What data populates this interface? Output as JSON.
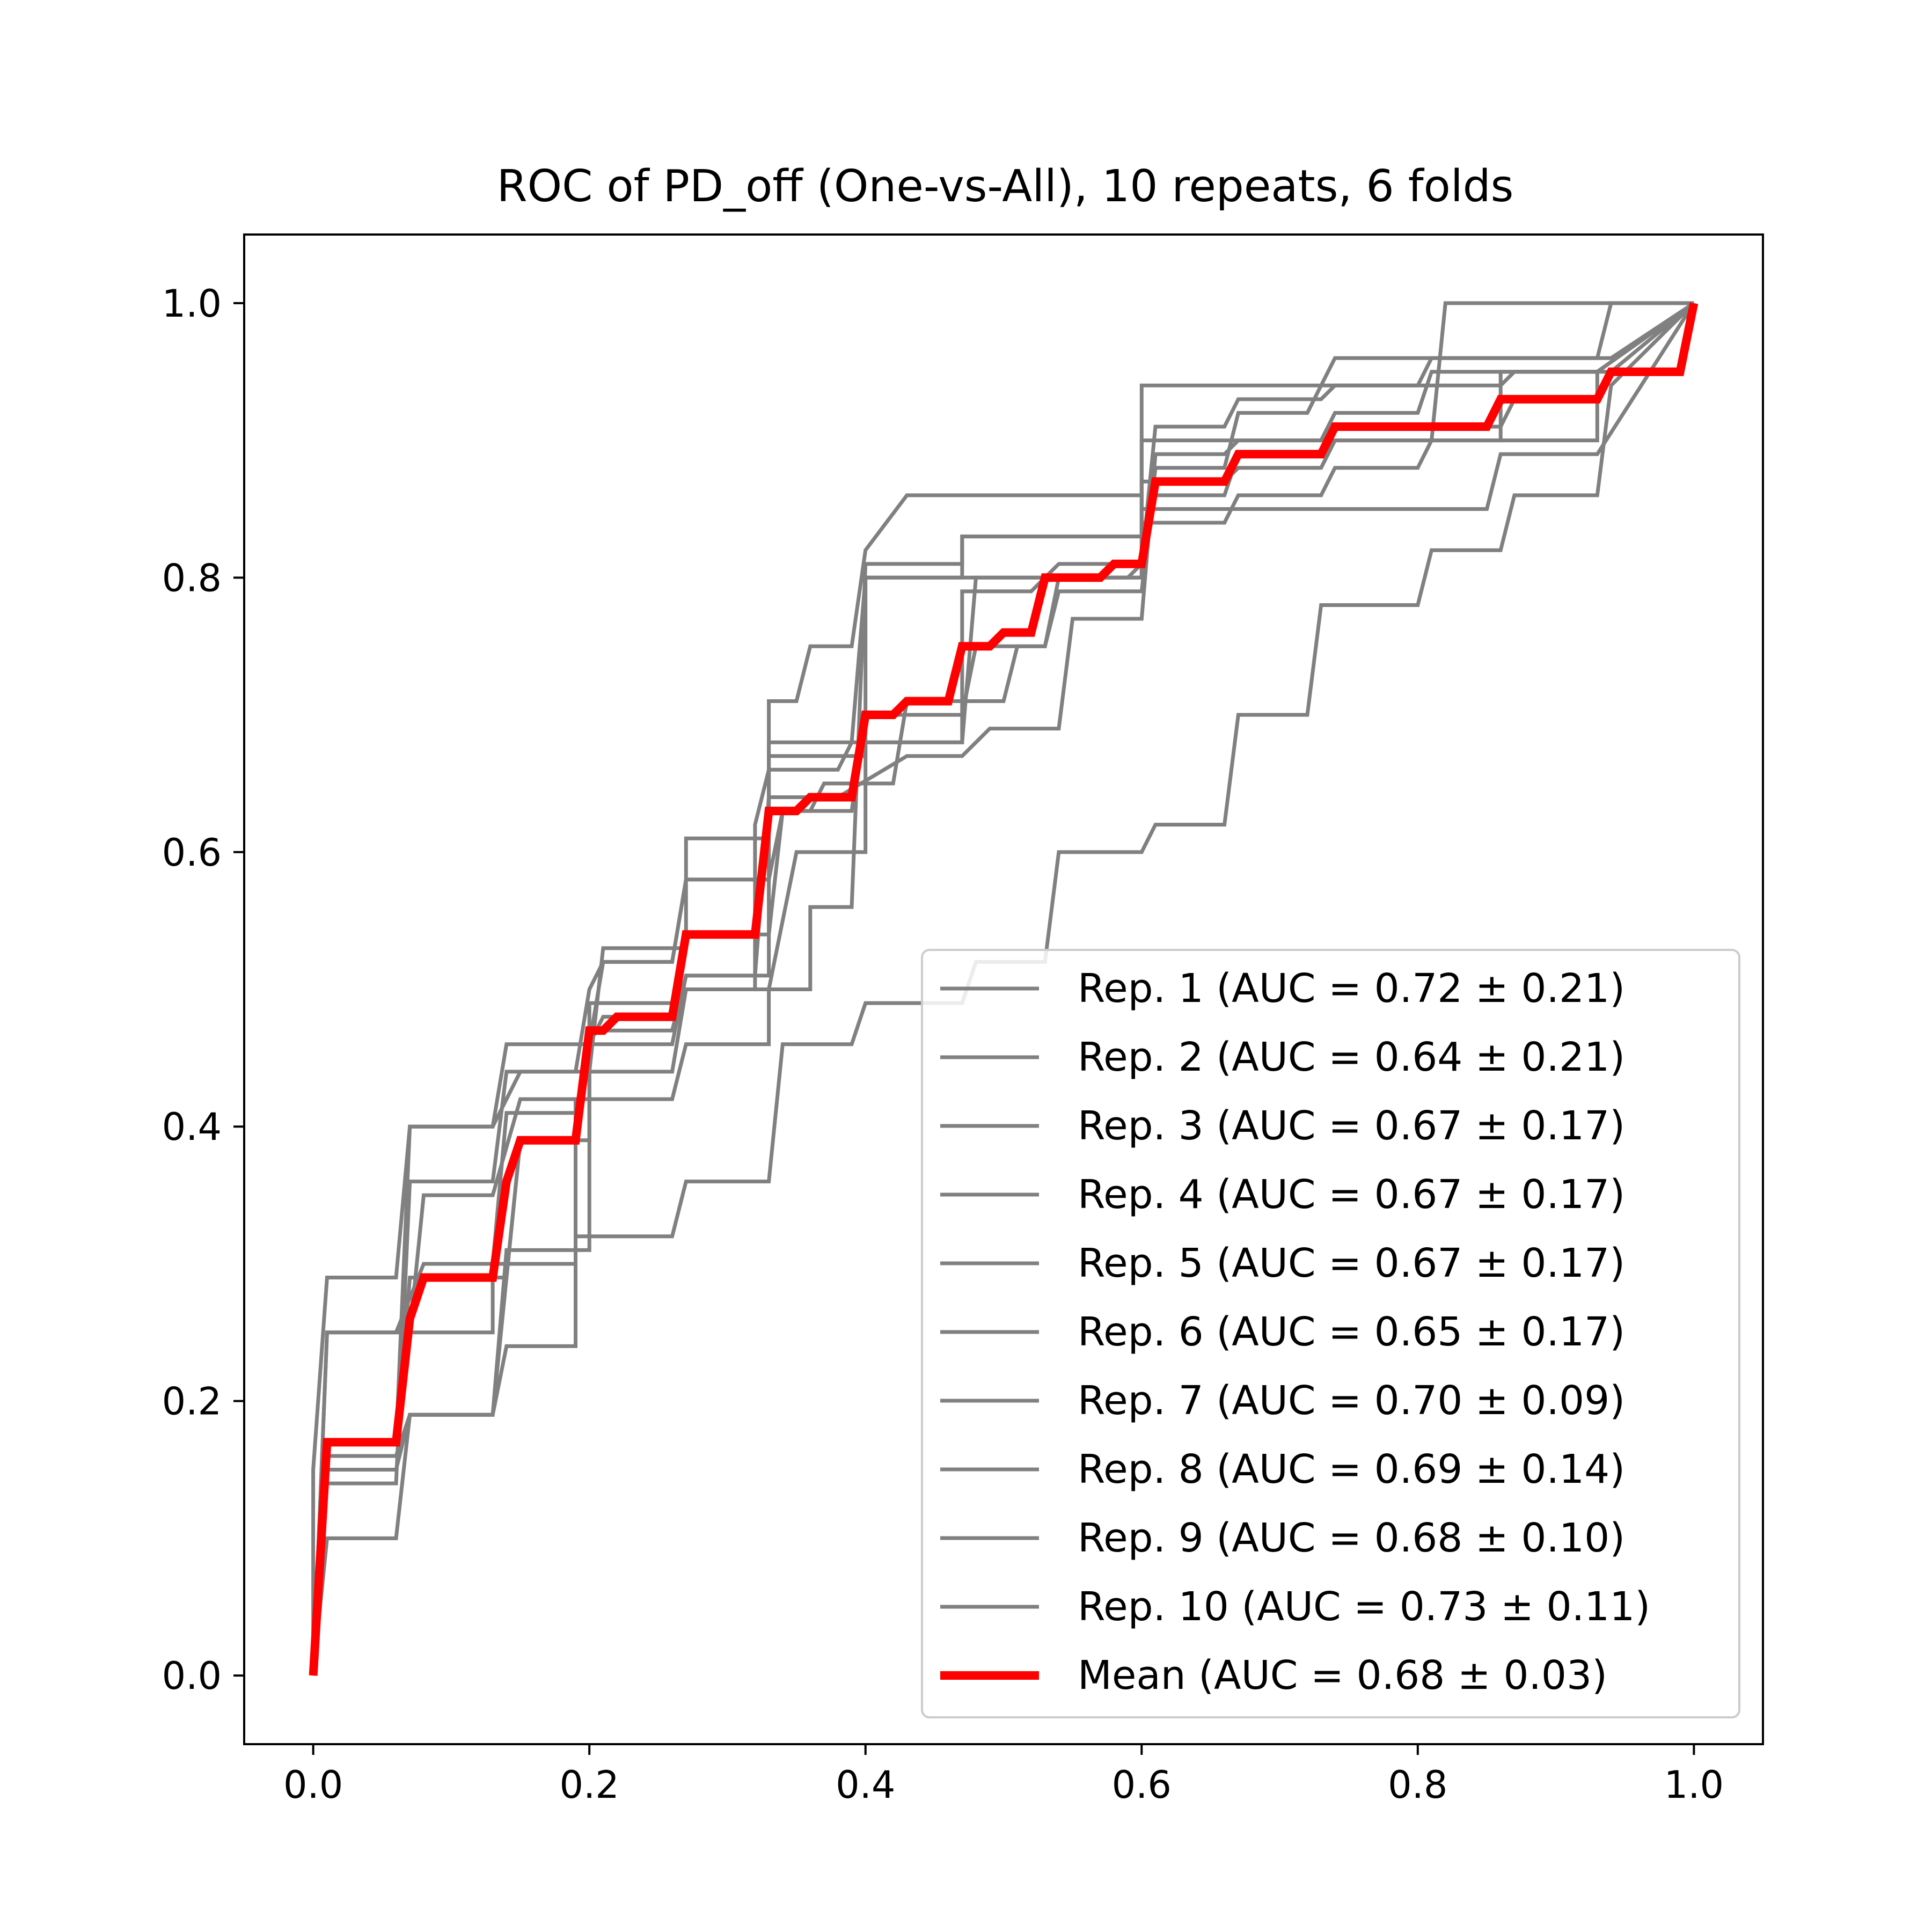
{
  "chart_data": {
    "type": "line",
    "title": "ROC of PD_off (One-vs-All), 10 repeats, 6 folds",
    "xlabel": "",
    "ylabel": "",
    "xlim": [
      -0.05,
      1.05
    ],
    "ylim": [
      -0.05,
      1.05
    ],
    "xticks": [
      "0.0",
      "0.2",
      "0.4",
      "0.6",
      "0.8",
      "1.0"
    ],
    "yticks": [
      "0.0",
      "0.2",
      "0.4",
      "0.6",
      "0.8",
      "1.0"
    ],
    "grid": false,
    "legend_position": "lower-right",
    "series": [
      {
        "name": "Rep. 1 (AUC = 0.72 ± 0.21)",
        "color": "#808080",
        "x": [
          0,
          0,
          0.01,
          0.06,
          0.07,
          0.07,
          0.13,
          0.15,
          0.15,
          0.2,
          0.21,
          0.21,
          0.27,
          0.27,
          0.33,
          0.33,
          0.35,
          0.36,
          0.39,
          0.4,
          0.4,
          0.43,
          0.6,
          0.6,
          0.81,
          0.82,
          0.85,
          0.86,
          1.0
        ],
        "y": [
          0,
          0.15,
          0.29,
          0.29,
          0.4,
          0.4,
          0.4,
          0.44,
          0.44,
          0.44,
          0.53,
          0.53,
          0.53,
          0.61,
          0.61,
          0.71,
          0.71,
          0.75,
          0.75,
          0.82,
          0.82,
          0.86,
          0.86,
          0.9,
          0.9,
          1.0,
          1.0,
          1.0,
          1.0
        ]
      },
      {
        "name": "Rep. 2 (AUC = 0.64 ± 0.21)",
        "color": "#808080",
        "x": [
          0,
          0.01,
          0.06,
          0.07,
          0.13,
          0.14,
          0.19,
          0.19,
          0.26,
          0.27,
          0.33,
          0.33,
          0.36,
          0.36,
          0.39,
          0.4,
          0.47,
          0.47,
          0.6,
          0.6,
          0.66,
          0.66,
          0.85,
          0.86,
          0.93,
          0.93,
          1.0
        ],
        "y": [
          0,
          0.1,
          0.1,
          0.19,
          0.19,
          0.24,
          0.24,
          0.42,
          0.42,
          0.46,
          0.46,
          0.5,
          0.5,
          0.56,
          0.56,
          0.81,
          0.81,
          0.83,
          0.83,
          0.85,
          0.85,
          0.85,
          0.85,
          0.89,
          0.89,
          0.89,
          1.0
        ]
      },
      {
        "name": "Rep. 3 (AUC = 0.67 ± 0.17)",
        "color": "#808080",
        "x": [
          0,
          0.01,
          0.07,
          0.08,
          0.13,
          0.15,
          0.2,
          0.2,
          0.26,
          0.27,
          0.32,
          0.32,
          0.33,
          0.38,
          0.39,
          0.43,
          0.47,
          0.48,
          0.53,
          0.54,
          0.6,
          0.61,
          0.66,
          0.67,
          0.73,
          0.74,
          0.8,
          0.81,
          0.93,
          0.94,
          1.0
        ],
        "y": [
          0,
          0.25,
          0.25,
          0.35,
          0.35,
          0.42,
          0.42,
          0.49,
          0.49,
          0.5,
          0.5,
          0.62,
          0.66,
          0.66,
          0.68,
          0.68,
          0.68,
          0.8,
          0.8,
          0.81,
          0.81,
          0.91,
          0.91,
          0.93,
          0.93,
          0.94,
          0.94,
          0.96,
          0.96,
          0.96,
          1.0
        ]
      },
      {
        "name": "Rep. 4 (AUC = 0.67 ± 0.17)",
        "color": "#808080",
        "x": [
          0,
          0.01,
          0.06,
          0.07,
          0.13,
          0.14,
          0.19,
          0.2,
          0.21,
          0.26,
          0.27,
          0.33,
          0.34,
          0.36,
          0.37,
          0.42,
          0.43,
          0.5,
          0.51,
          0.53,
          0.54,
          0.6,
          0.61,
          0.66,
          0.67,
          0.72,
          0.73,
          0.86,
          0.87,
          0.99,
          1.0
        ],
        "y": [
          0,
          0.14,
          0.14,
          0.36,
          0.36,
          0.44,
          0.44,
          0.5,
          0.52,
          0.52,
          0.58,
          0.58,
          0.63,
          0.63,
          0.65,
          0.65,
          0.71,
          0.71,
          0.75,
          0.75,
          0.79,
          0.79,
          0.88,
          0.88,
          0.92,
          0.92,
          0.94,
          0.94,
          0.95,
          0.95,
          1.0
        ]
      },
      {
        "name": "Rep. 5 (AUC = 0.67 ± 0.17)",
        "color": "#808080",
        "x": [
          0,
          0.01,
          0.06,
          0.07,
          0.13,
          0.14,
          0.2,
          0.2,
          0.26,
          0.27,
          0.33,
          0.33,
          0.4,
          0.4,
          0.47,
          0.47,
          0.52,
          0.53,
          0.6,
          0.6,
          0.66,
          0.67,
          0.73,
          0.74,
          0.8,
          0.81,
          0.93,
          0.93,
          1.0
        ],
        "y": [
          0,
          0.16,
          0.16,
          0.19,
          0.19,
          0.31,
          0.31,
          0.47,
          0.47,
          0.51,
          0.51,
          0.67,
          0.67,
          0.68,
          0.68,
          0.79,
          0.79,
          0.8,
          0.8,
          0.84,
          0.84,
          0.86,
          0.86,
          0.88,
          0.88,
          0.9,
          0.9,
          0.95,
          1.0
        ]
      },
      {
        "name": "Rep. 6 (AUC = 0.65 ± 0.17)",
        "color": "#808080",
        "x": [
          0,
          0.01,
          0.06,
          0.07,
          0.13,
          0.13,
          0.19,
          0.19,
          0.26,
          0.27,
          0.33,
          0.34,
          0.39,
          0.4,
          0.47,
          0.48,
          0.53,
          0.54,
          0.6,
          0.61,
          0.66,
          0.67,
          0.72,
          0.73,
          0.8,
          0.81,
          0.86,
          0.87,
          0.93,
          0.94,
          1.0
        ],
        "y": [
          0,
          0.17,
          0.17,
          0.25,
          0.25,
          0.3,
          0.3,
          0.32,
          0.32,
          0.36,
          0.36,
          0.46,
          0.46,
          0.49,
          0.49,
          0.52,
          0.52,
          0.6,
          0.6,
          0.62,
          0.62,
          0.7,
          0.7,
          0.78,
          0.78,
          0.82,
          0.82,
          0.86,
          0.86,
          0.94,
          1.0
        ]
      },
      {
        "name": "Rep. 7 (AUC = 0.70 ± 0.09)",
        "color": "#808080",
        "x": [
          0,
          0.01,
          0.06,
          0.07,
          0.14,
          0.15,
          0.19,
          0.2,
          0.21,
          0.26,
          0.27,
          0.33,
          0.34,
          0.39,
          0.4,
          0.47,
          0.48,
          0.53,
          0.54,
          0.59,
          0.6,
          0.61,
          0.66,
          0.67,
          0.73,
          0.74,
          0.86,
          0.87,
          0.93,
          0.94,
          1.0
        ],
        "y": [
          0,
          0.17,
          0.17,
          0.29,
          0.29,
          0.39,
          0.39,
          0.46,
          0.48,
          0.48,
          0.54,
          0.54,
          0.63,
          0.63,
          0.7,
          0.7,
          0.75,
          0.75,
          0.8,
          0.8,
          0.81,
          0.86,
          0.86,
          0.89,
          0.89,
          0.91,
          0.91,
          0.93,
          0.93,
          0.95,
          1.0
        ]
      },
      {
        "name": "Rep. 8 (AUC = 0.69 ± 0.14)",
        "color": "#808080",
        "x": [
          0,
          0.01,
          0.06,
          0.08,
          0.13,
          0.14,
          0.19,
          0.2,
          0.26,
          0.27,
          0.32,
          0.33,
          0.37,
          0.38,
          0.43,
          0.47,
          0.49,
          0.54,
          0.55,
          0.6,
          0.61,
          0.66,
          0.67,
          0.73,
          0.74,
          0.8,
          0.81,
          0.93,
          0.93,
          1.0
        ],
        "y": [
          0,
          0.25,
          0.25,
          0.3,
          0.3,
          0.41,
          0.41,
          0.46,
          0.46,
          0.51,
          0.51,
          0.64,
          0.64,
          0.64,
          0.67,
          0.67,
          0.69,
          0.69,
          0.77,
          0.77,
          0.89,
          0.89,
          0.9,
          0.9,
          0.92,
          0.92,
          0.95,
          0.95,
          0.95,
          1.0
        ]
      },
      {
        "name": "Rep. 9 (AUC = 0.68 ± 0.10)",
        "color": "#808080",
        "x": [
          0,
          0.01,
          0.06,
          0.07,
          0.13,
          0.15,
          0.2,
          0.2,
          0.26,
          0.27,
          0.33,
          0.35,
          0.4,
          0.4,
          0.46,
          0.47,
          0.6,
          0.6,
          0.66,
          0.67,
          0.73,
          0.74,
          0.86,
          0.86,
          0.93,
          0.93,
          1.0
        ],
        "y": [
          0,
          0.15,
          0.15,
          0.19,
          0.19,
          0.39,
          0.39,
          0.44,
          0.44,
          0.5,
          0.5,
          0.6,
          0.6,
          0.8,
          0.8,
          0.8,
          0.8,
          0.87,
          0.87,
          0.88,
          0.88,
          0.9,
          0.9,
          0.95,
          0.95,
          0.95,
          1.0
        ]
      },
      {
        "name": "Rep. 10 (AUC = 0.73 ± 0.11)",
        "color": "#808080",
        "x": [
          0,
          0.01,
          0.06,
          0.07,
          0.13,
          0.14,
          0.2,
          0.21,
          0.26,
          0.27,
          0.33,
          0.33,
          0.39,
          0.4,
          0.47,
          0.47,
          0.52,
          0.53,
          0.6,
          0.6,
          0.66,
          0.67,
          0.73,
          0.74,
          0.85,
          0.86,
          0.93,
          0.94,
          1.0
        ],
        "y": [
          0,
          0.17,
          0.17,
          0.4,
          0.4,
          0.46,
          0.46,
          0.52,
          0.52,
          0.58,
          0.58,
          0.68,
          0.68,
          0.8,
          0.8,
          0.83,
          0.83,
          0.83,
          0.83,
          0.94,
          0.94,
          0.94,
          0.94,
          0.96,
          0.96,
          0.96,
          0.96,
          1.0,
          1.0
        ]
      },
      {
        "name": "Mean (AUC = 0.68 ± 0.03)",
        "color": "#ff0000",
        "x": [
          0,
          0.01,
          0.06,
          0.07,
          0.08,
          0.13,
          0.14,
          0.15,
          0.19,
          0.2,
          0.21,
          0.22,
          0.26,
          0.27,
          0.32,
          0.33,
          0.35,
          0.36,
          0.39,
          0.4,
          0.42,
          0.43,
          0.46,
          0.47,
          0.49,
          0.5,
          0.52,
          0.53,
          0.54,
          0.57,
          0.58,
          0.59,
          0.6,
          0.61,
          0.66,
          0.67,
          0.71,
          0.72,
          0.73,
          0.74,
          0.8,
          0.81,
          0.85,
          0.86,
          0.87,
          0.93,
          0.94,
          0.99,
          1.0
        ],
        "y": [
          0,
          0.17,
          0.17,
          0.26,
          0.29,
          0.29,
          0.36,
          0.39,
          0.39,
          0.47,
          0.47,
          0.48,
          0.48,
          0.54,
          0.54,
          0.63,
          0.63,
          0.64,
          0.64,
          0.7,
          0.7,
          0.71,
          0.71,
          0.75,
          0.75,
          0.76,
          0.76,
          0.8,
          0.8,
          0.8,
          0.81,
          0.81,
          0.81,
          0.87,
          0.87,
          0.89,
          0.89,
          0.89,
          0.89,
          0.91,
          0.91,
          0.91,
          0.91,
          0.93,
          0.93,
          0.93,
          0.95,
          0.95,
          1.0
        ]
      }
    ]
  }
}
